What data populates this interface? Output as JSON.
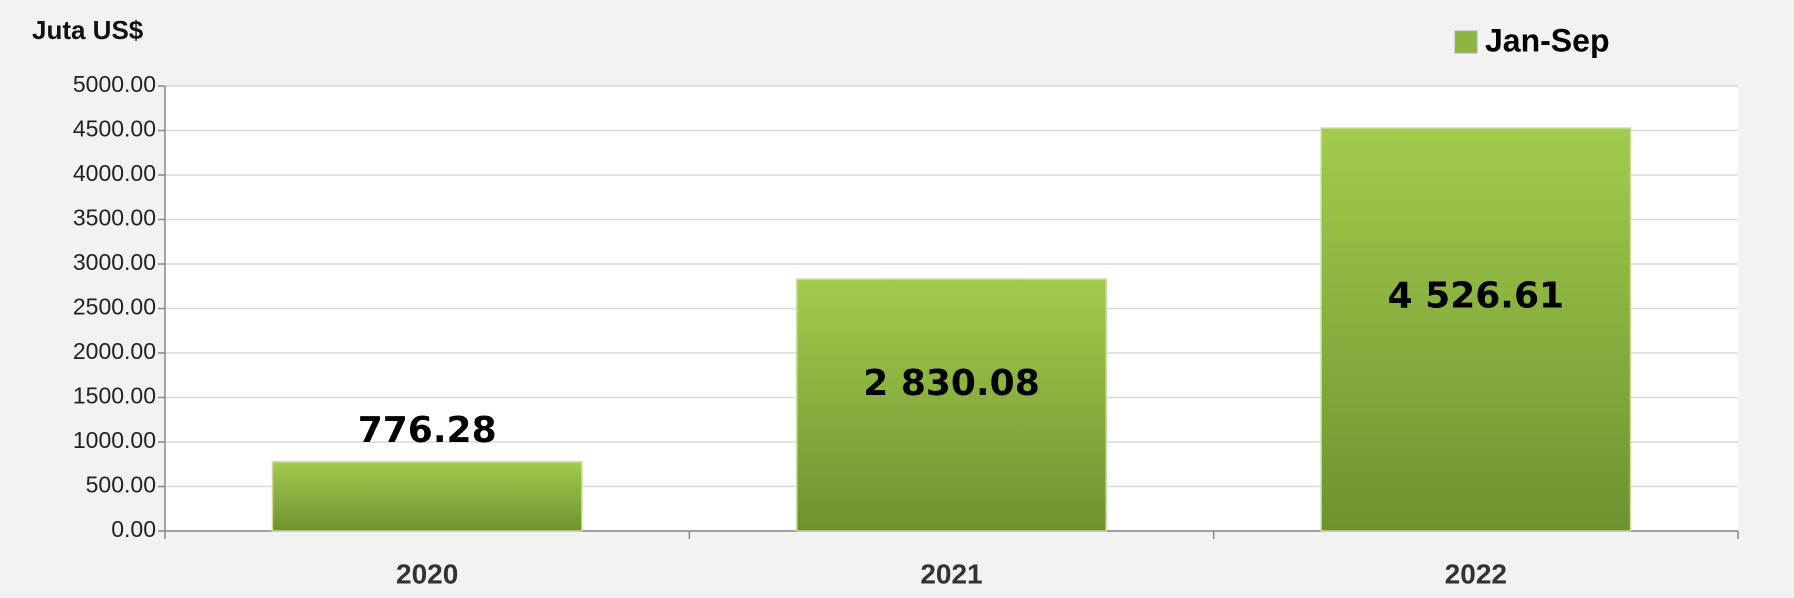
{
  "chart_data": {
    "type": "bar",
    "y_label": "Juta US$",
    "categories": [
      "2020",
      "2021",
      "2022"
    ],
    "series": [
      {
        "name": "Jan-Sep",
        "color": "#8db640",
        "values": [
          776.28,
          2830.08,
          4526.61
        ],
        "value_labels": [
          "776.28",
          "2 830.08",
          "4 526.61"
        ]
      }
    ],
    "ylim": [
      0,
      5000
    ],
    "yticks": [
      {
        "value": 0,
        "label": "0.00"
      },
      {
        "value": 500,
        "label": "500.00"
      },
      {
        "value": 1000,
        "label": "1000.00"
      },
      {
        "value": 1500,
        "label": "1500.00"
      },
      {
        "value": 2000,
        "label": "2000.00"
      },
      {
        "value": 2500,
        "label": "2500.00"
      },
      {
        "value": 3000,
        "label": "3000.00"
      },
      {
        "value": 3500,
        "label": "3500.00"
      },
      {
        "value": 4000,
        "label": "4000.00"
      },
      {
        "value": 4500,
        "label": "4500.00"
      },
      {
        "value": 5000,
        "label": "5000.00"
      }
    ],
    "grid": true,
    "legend": "top-right"
  }
}
